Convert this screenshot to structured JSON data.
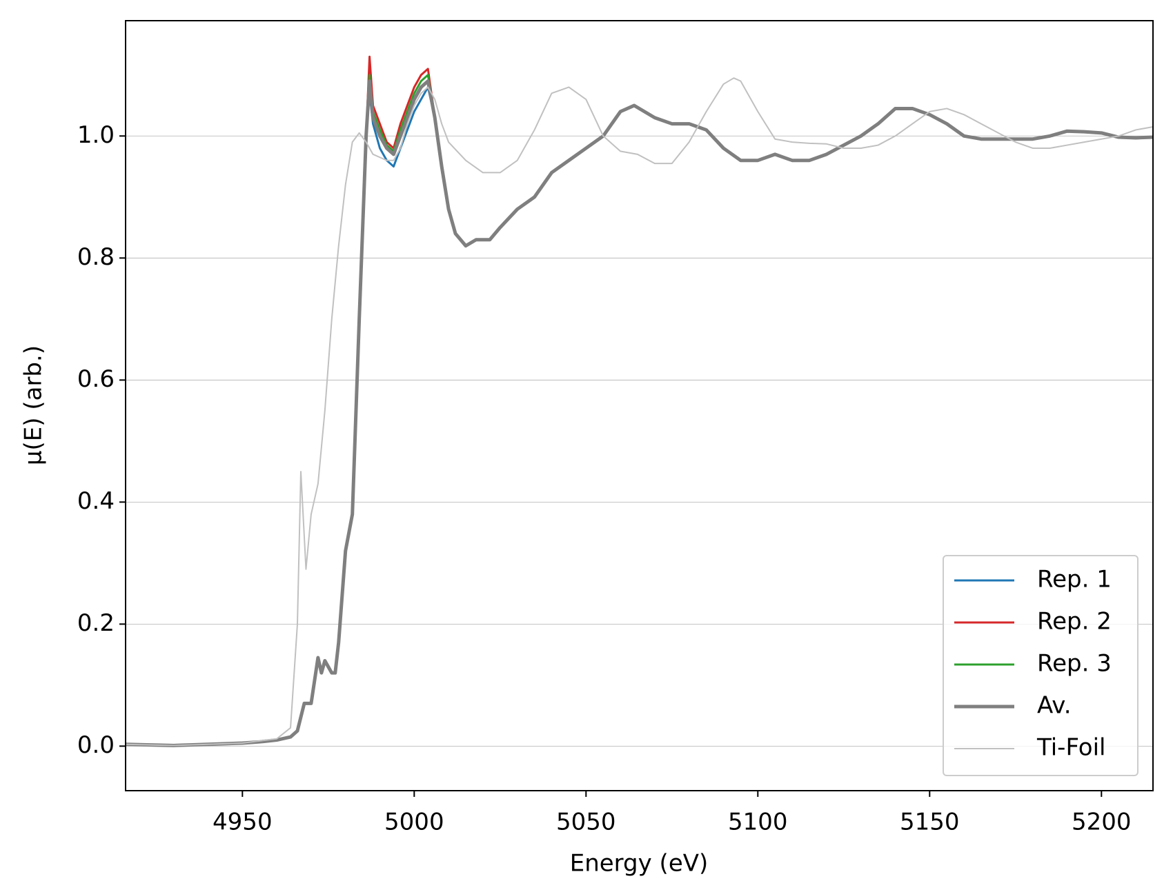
{
  "chart_data": {
    "type": "line",
    "xlabel": "Energy (eV)",
    "ylabel": "μ(E) (arb.)",
    "xlim": [
      4916,
      5215
    ],
    "ylim": [
      -0.073,
      1.189
    ],
    "xticks": [
      4950,
      5000,
      5050,
      5100,
      5150,
      5200
    ],
    "yticks": [
      {
        "value": 0,
        "label": "0.0"
      },
      0.2,
      0.4,
      0.6,
      0.8,
      {
        "value": 1,
        "label": "1.0"
      }
    ],
    "grid": "y",
    "legend": "lower right",
    "x": [
      4916,
      4930,
      4940,
      4950,
      4955,
      4960,
      4964,
      4966,
      4968,
      4970,
      4972,
      4973,
      4974,
      4976,
      4977,
      4978,
      4980,
      4982,
      4984,
      4986,
      4987,
      4988,
      4990,
      4992,
      4994,
      4996,
      4998,
      5000,
      5002,
      5004,
      5006,
      5008,
      5010,
      5012,
      5015,
      5018,
      5022,
      5025,
      5030,
      5035,
      5040,
      5045,
      5050,
      5055,
      5060,
      5064,
      5070,
      5075,
      5080,
      5085,
      5090,
      5095,
      5100,
      5105,
      5110,
      5115,
      5120,
      5125,
      5130,
      5135,
      5140,
      5145,
      5150,
      5155,
      5160,
      5165,
      5170,
      5175,
      5180,
      5185,
      5190,
      5195,
      5200,
      5205,
      5210,
      5215
    ],
    "series": [
      {
        "name": "Rep. 1",
        "color": "#1f77b4",
        "linewidth": 3,
        "values": [
          0.003,
          0.001,
          0.003,
          0.005,
          0.007,
          0.01,
          0.015,
          0.025,
          0.07,
          0.07,
          0.145,
          0.12,
          0.14,
          0.12,
          0.12,
          0.17,
          0.32,
          0.38,
          0.7,
          1.0,
          1.07,
          1.02,
          0.98,
          0.96,
          0.95,
          0.98,
          1.01,
          1.04,
          1.06,
          1.08,
          1.03,
          0.95,
          0.88,
          0.84,
          0.82,
          0.83,
          0.83,
          0.85,
          0.88,
          0.9,
          0.94,
          0.96,
          0.98,
          1.0,
          1.04,
          1.05,
          1.03,
          1.02,
          1.02,
          1.01,
          0.98,
          0.96,
          0.96,
          0.97,
          0.96,
          0.96,
          0.97,
          0.985,
          1.0,
          1.02,
          1.045,
          1.045,
          1.035,
          1.02,
          1.0,
          0.995,
          0.995,
          0.995,
          0.995,
          1.0,
          1.008,
          1.007,
          1.005,
          0.998,
          0.997,
          0.998
        ]
      },
      {
        "name": "Rep. 2",
        "color": "#d62728",
        "linewidth": 3,
        "values": [
          0.003,
          0.001,
          0.003,
          0.005,
          0.007,
          0.01,
          0.015,
          0.025,
          0.07,
          0.07,
          0.145,
          0.12,
          0.14,
          0.12,
          0.12,
          0.17,
          0.32,
          0.38,
          0.7,
          1.0,
          1.13,
          1.05,
          1.02,
          0.99,
          0.98,
          1.02,
          1.05,
          1.08,
          1.1,
          1.11,
          1.03,
          0.95,
          0.88,
          0.84,
          0.82,
          0.83,
          0.83,
          0.85,
          0.88,
          0.9,
          0.94,
          0.96,
          0.98,
          1.0,
          1.04,
          1.05,
          1.03,
          1.02,
          1.02,
          1.01,
          0.98,
          0.96,
          0.96,
          0.97,
          0.96,
          0.96,
          0.97,
          0.985,
          1.0,
          1.02,
          1.045,
          1.045,
          1.035,
          1.02,
          1.0,
          0.995,
          0.995,
          0.995,
          0.995,
          1.0,
          1.008,
          1.007,
          1.005,
          0.998,
          0.997,
          0.998
        ]
      },
      {
        "name": "Rep. 3",
        "color": "#2ca02c",
        "linewidth": 3,
        "values": [
          0.003,
          0.001,
          0.003,
          0.005,
          0.007,
          0.01,
          0.015,
          0.025,
          0.07,
          0.07,
          0.145,
          0.12,
          0.14,
          0.12,
          0.12,
          0.17,
          0.32,
          0.38,
          0.7,
          1.0,
          1.1,
          1.04,
          1.01,
          0.985,
          0.975,
          1.01,
          1.04,
          1.07,
          1.09,
          1.1,
          1.03,
          0.95,
          0.88,
          0.84,
          0.82,
          0.83,
          0.83,
          0.85,
          0.88,
          0.9,
          0.94,
          0.96,
          0.98,
          1.0,
          1.04,
          1.05,
          1.03,
          1.02,
          1.02,
          1.01,
          0.98,
          0.96,
          0.96,
          0.97,
          0.96,
          0.96,
          0.97,
          0.985,
          1.0,
          1.02,
          1.045,
          1.045,
          1.035,
          1.02,
          1.0,
          0.995,
          0.995,
          0.995,
          0.995,
          1.0,
          1.008,
          1.007,
          1.005,
          0.998,
          0.997,
          0.998
        ]
      },
      {
        "name": "Av.",
        "color": "#7f7f7f",
        "linewidth": 5,
        "values": [
          0.003,
          0.001,
          0.003,
          0.005,
          0.007,
          0.01,
          0.015,
          0.025,
          0.07,
          0.07,
          0.145,
          0.12,
          0.14,
          0.12,
          0.12,
          0.17,
          0.32,
          0.38,
          0.7,
          1.0,
          1.09,
          1.03,
          1.0,
          0.98,
          0.97,
          1.0,
          1.03,
          1.06,
          1.08,
          1.09,
          1.03,
          0.95,
          0.88,
          0.84,
          0.82,
          0.83,
          0.83,
          0.85,
          0.88,
          0.9,
          0.94,
          0.96,
          0.98,
          1.0,
          1.04,
          1.05,
          1.03,
          1.02,
          1.02,
          1.01,
          0.98,
          0.96,
          0.96,
          0.97,
          0.96,
          0.96,
          0.97,
          0.985,
          1.0,
          1.02,
          1.045,
          1.045,
          1.035,
          1.02,
          1.0,
          0.995,
          0.995,
          0.995,
          0.995,
          1.0,
          1.008,
          1.007,
          1.005,
          0.998,
          0.997,
          0.998
        ]
      },
      {
        "name": "Ti-Foil",
        "color": "#c0c0c0",
        "linewidth": 2,
        "x": [
          4916,
          4930,
          4950,
          4960,
          4964,
          4966,
          4967,
          4968.5,
          4970,
          4972,
          4974,
          4976,
          4978,
          4980,
          4982,
          4984,
          4986,
          4988,
          4990,
          4992,
          4994,
          4996,
          4998,
          5000,
          5002,
          5004,
          5006,
          5008,
          5010,
          5015,
          5020,
          5025,
          5030,
          5035,
          5040,
          5045,
          5050,
          5055,
          5060,
          5065,
          5070,
          5075,
          5080,
          5085,
          5090,
          5093,
          5095,
          5100,
          5105,
          5110,
          5115,
          5120,
          5125,
          5130,
          5135,
          5140,
          5145,
          5150,
          5155,
          5160,
          5165,
          5170,
          5175,
          5180,
          5185,
          5190,
          5195,
          5200,
          5205,
          5210,
          5215
        ],
        "values": [
          0.003,
          0.001,
          0.005,
          0.012,
          0.03,
          0.2,
          0.45,
          0.29,
          0.38,
          0.43,
          0.55,
          0.7,
          0.82,
          0.92,
          0.99,
          1.005,
          0.99,
          0.97,
          0.965,
          0.96,
          0.96,
          0.98,
          1.02,
          1.05,
          1.07,
          1.08,
          1.06,
          1.02,
          0.99,
          0.96,
          0.94,
          0.94,
          0.96,
          1.01,
          1.07,
          1.08,
          1.06,
          1.0,
          0.975,
          0.97,
          0.955,
          0.955,
          0.99,
          1.04,
          1.085,
          1.095,
          1.09,
          1.04,
          0.995,
          0.99,
          0.988,
          0.987,
          0.98,
          0.98,
          0.985,
          1.0,
          1.02,
          1.04,
          1.045,
          1.035,
          1.02,
          1.005,
          0.99,
          0.98,
          0.98,
          0.985,
          0.99,
          0.995,
          1.0,
          1.01,
          1.015
        ]
      }
    ]
  }
}
